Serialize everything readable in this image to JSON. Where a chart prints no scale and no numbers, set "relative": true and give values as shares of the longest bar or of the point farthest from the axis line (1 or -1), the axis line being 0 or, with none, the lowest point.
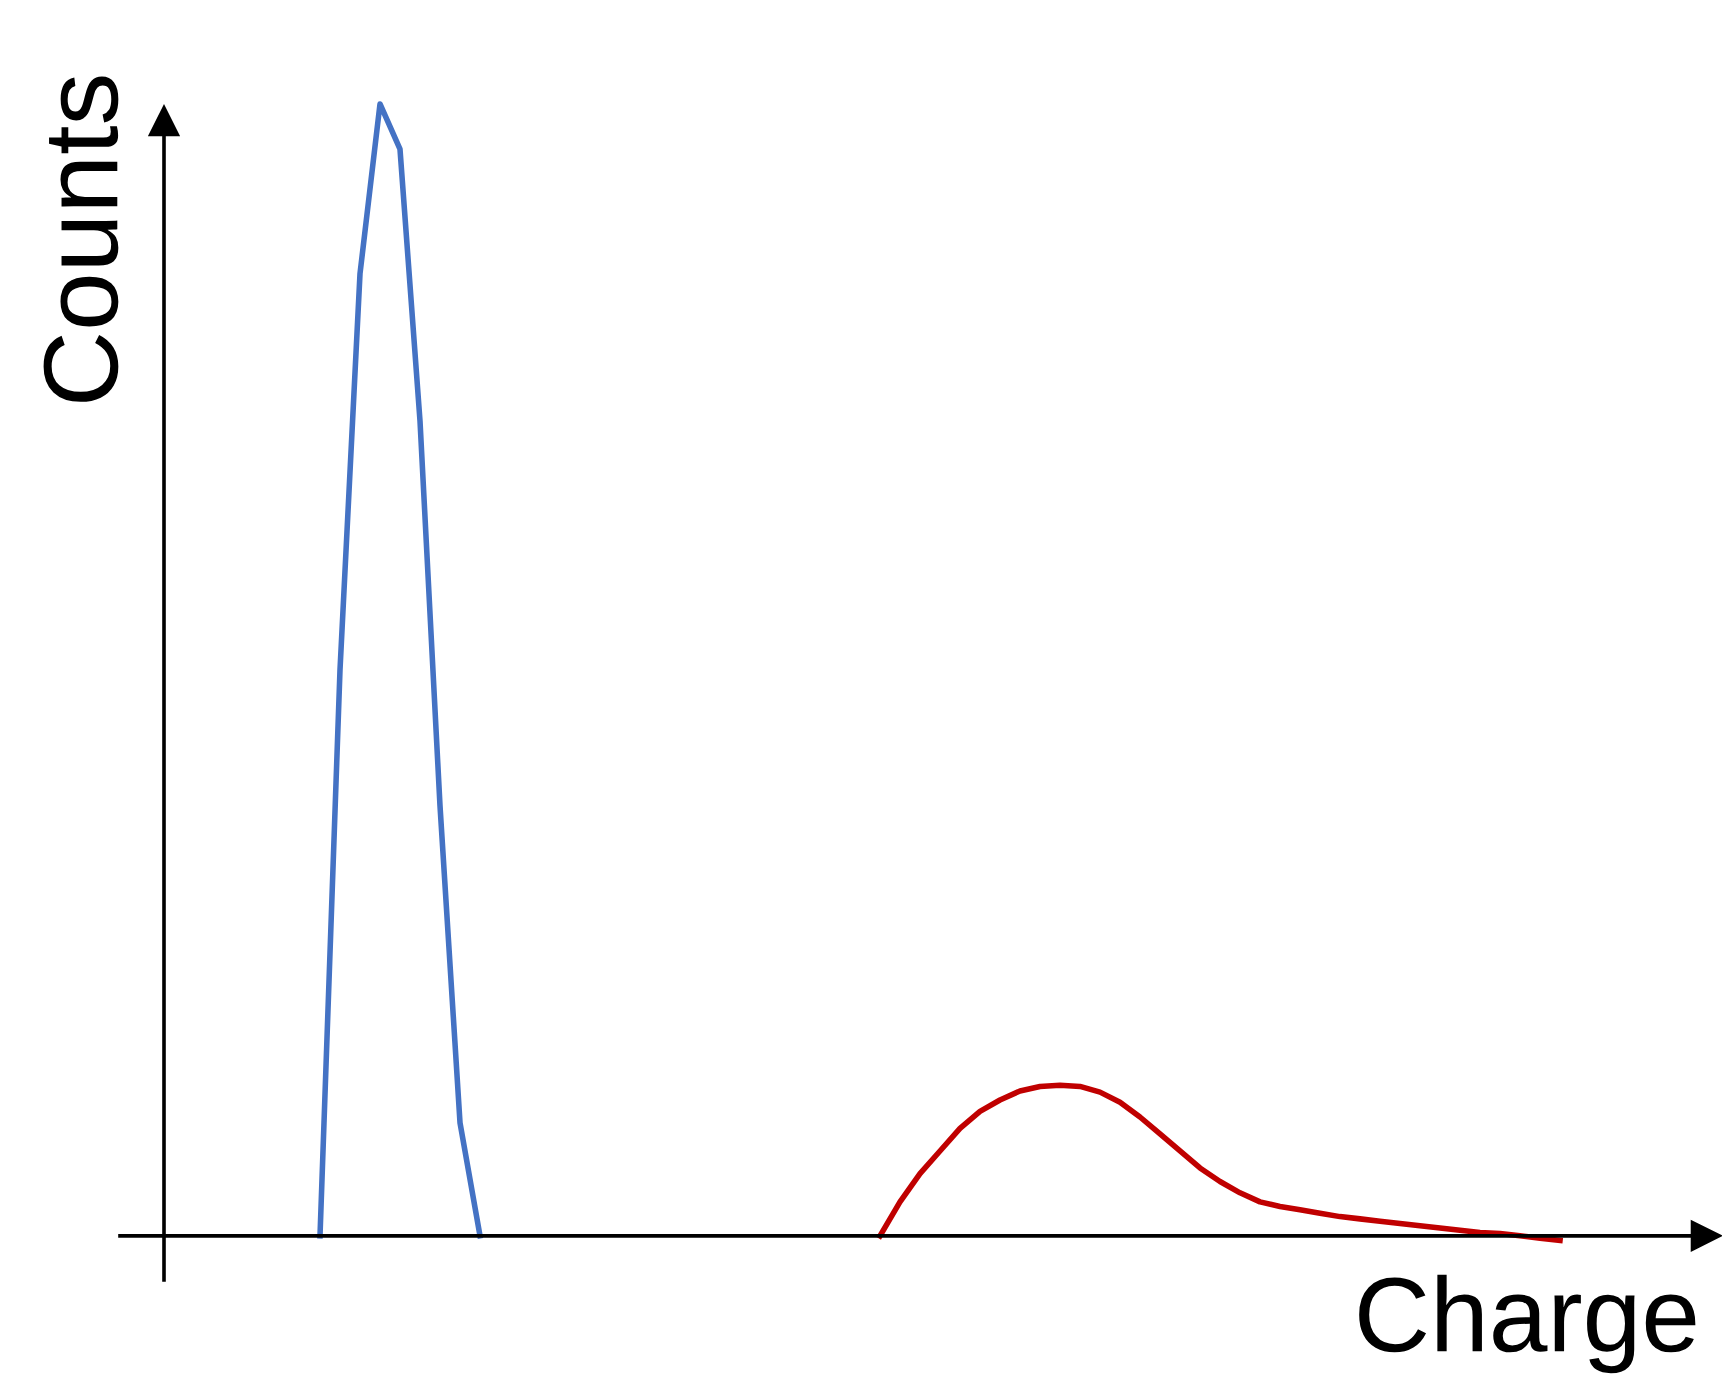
{
  "chart_data": {
    "type": "line",
    "relative": true,
    "xlabel": "Charge",
    "ylabel": "Counts",
    "categories": [
      null,
      null,
      null,
      null,
      null,
      null,
      null,
      null,
      null,
      null,
      null,
      null,
      null,
      null,
      null,
      null,
      null,
      null,
      null,
      null,
      null,
      null,
      null,
      null,
      null,
      null,
      null,
      null,
      null,
      null,
      null,
      null,
      null,
      null,
      null,
      null,
      null,
      null,
      null,
      null,
      null,
      null,
      null,
      null,
      null,
      null,
      null,
      null,
      null,
      null,
      null,
      null,
      null,
      null,
      null,
      null,
      null,
      null,
      null,
      null,
      null,
      null,
      null
    ],
    "series": [
      {
        "color": "#4472c4",
        "values": [
          0,
          0.5,
          0.85,
          1.0,
          0.96,
          0.72,
          0.38,
          0.1,
          0,
          null,
          null,
          null,
          null,
          null,
          null,
          null,
          null,
          null,
          null,
          null,
          null,
          null,
          null,
          null,
          null,
          null,
          null,
          null,
          null,
          null,
          null,
          null,
          null,
          null,
          null,
          null,
          null,
          null,
          null,
          null,
          null,
          null,
          null,
          null,
          null,
          null,
          null,
          null,
          null,
          null,
          null,
          null,
          null,
          null,
          null,
          null,
          null,
          null,
          null,
          null,
          null,
          null,
          null
        ]
      },
      {
        "color": "#c00000",
        "values": [
          null,
          null,
          null,
          null,
          null,
          null,
          null,
          null,
          null,
          null,
          null,
          null,
          null,
          null,
          null,
          null,
          null,
          null,
          null,
          null,
          null,
          null,
          null,
          null,
          null,
          null,
          null,
          null,
          0,
          0.03,
          0.055,
          0.075,
          0.095,
          0.11,
          0.12,
          0.128,
          0.132,
          0.133,
          0.132,
          0.127,
          0.118,
          0.105,
          0.09,
          0.075,
          0.06,
          0.048,
          0.038,
          0.03,
          0.026,
          0.023,
          0.02,
          0.017,
          0.015,
          0.013,
          0.011,
          0.009,
          0.007,
          0.005,
          0.003,
          0.002,
          0,
          -0.002,
          -0.004
        ]
      }
    ],
    "marker": "none",
    "line_style": "solid"
  }
}
